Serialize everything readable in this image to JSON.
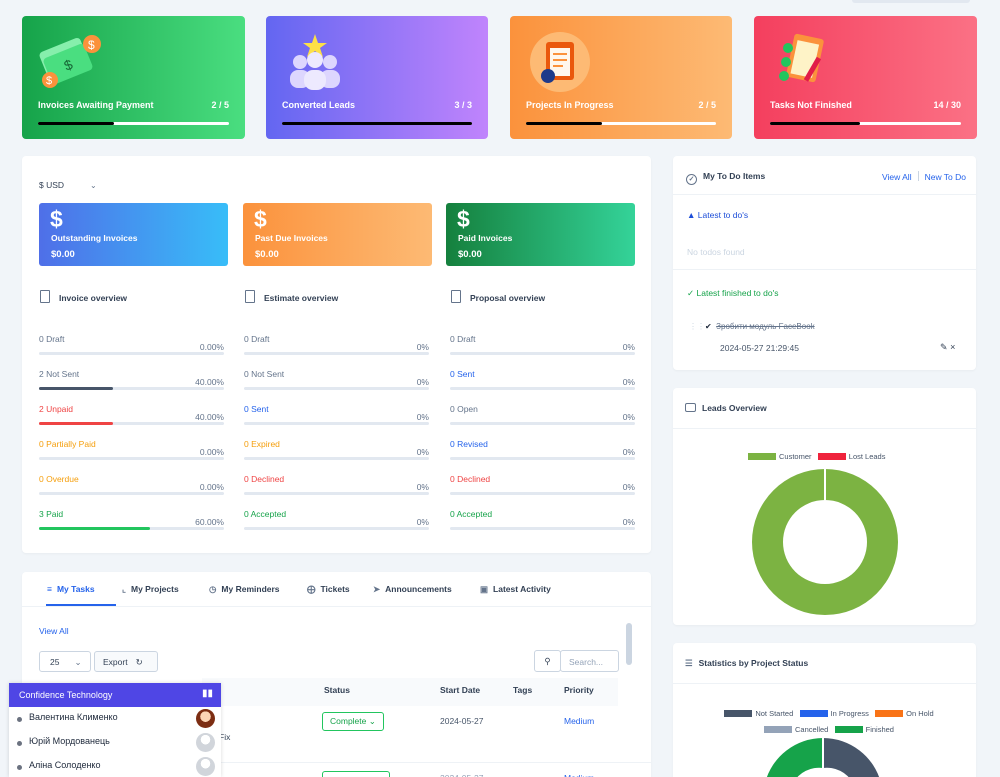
{
  "stats": [
    {
      "label": "Invoices Awaiting Payment",
      "count": "2 / 5",
      "progress": 0.4,
      "color_from": "#16a34a",
      "color_to": "#4ade80"
    },
    {
      "label": "Converted Leads",
      "count": "3 / 3",
      "progress": 1.0,
      "color_from": "#6366f1",
      "color_to": "#c084fc"
    },
    {
      "label": "Projects In Progress",
      "count": "2 / 5",
      "progress": 0.4,
      "color_from": "#fb923c",
      "color_to": "#fdba74"
    },
    {
      "label": "Tasks Not Finished",
      "count": "14 / 30",
      "progress": 0.47,
      "color_from": "#f43f5e",
      "color_to": "#fb7185"
    }
  ],
  "finance": {
    "currency": "$ USD",
    "cards": [
      {
        "symbol": "$",
        "label": "Outstanding Invoices",
        "value": "$0.00"
      },
      {
        "symbol": "$",
        "label": "Past Due Invoices",
        "value": "$0.00"
      },
      {
        "symbol": "$",
        "label": "Paid Invoices",
        "value": "$0.00"
      }
    ],
    "invoice_overview": {
      "title": "Invoice overview",
      "rows": [
        {
          "label": "0 Draft",
          "percent": "0.00%",
          "value": 0,
          "color": "#64748b",
          "bar": "#475569"
        },
        {
          "label": "2 Not Sent",
          "percent": "40.00%",
          "value": 40,
          "color": "#64748b",
          "bar": "#475569"
        },
        {
          "label": "2 Unpaid",
          "percent": "40.00%",
          "value": 40,
          "color": "#ef4444",
          "bar": "#ef4444"
        },
        {
          "label": "0 Partially Paid",
          "percent": "0.00%",
          "value": 0,
          "color": "#f59e0b",
          "bar": "#f59e0b"
        },
        {
          "label": "0 Overdue",
          "percent": "0.00%",
          "value": 0,
          "color": "#f59e0b",
          "bar": "#f59e0b"
        },
        {
          "label": "3 Paid",
          "percent": "60.00%",
          "value": 60,
          "color": "#16a34a",
          "bar": "#22c55e"
        }
      ]
    },
    "estimate_overview": {
      "title": "Estimate overview",
      "rows": [
        {
          "label": "0 Draft",
          "percent": "0%",
          "value": 0,
          "color": "#64748b",
          "bar": "#475569"
        },
        {
          "label": "0 Not Sent",
          "percent": "0%",
          "value": 0,
          "color": "#64748b",
          "bar": "#475569"
        },
        {
          "label": "0 Sent",
          "percent": "0%",
          "value": 0,
          "color": "#2563eb",
          "bar": "#2563eb"
        },
        {
          "label": "0 Expired",
          "percent": "0%",
          "value": 0,
          "color": "#f59e0b",
          "bar": "#f59e0b"
        },
        {
          "label": "0 Declined",
          "percent": "0%",
          "value": 0,
          "color": "#ef4444",
          "bar": "#ef4444"
        },
        {
          "label": "0 Accepted",
          "percent": "0%",
          "value": 0,
          "color": "#16a34a",
          "bar": "#22c55e"
        }
      ]
    },
    "proposal_overview": {
      "title": "Proposal overview",
      "rows": [
        {
          "label": "0 Draft",
          "percent": "0%",
          "value": 0,
          "color": "#64748b",
          "bar": "#475569"
        },
        {
          "label": "0 Sent",
          "percent": "0%",
          "value": 0,
          "color": "#2563eb",
          "bar": "#2563eb"
        },
        {
          "label": "0 Open",
          "percent": "0%",
          "value": 0,
          "color": "#64748b",
          "bar": "#475569"
        },
        {
          "label": "0 Revised",
          "percent": "0%",
          "value": 0,
          "color": "#2563eb",
          "bar": "#2563eb"
        },
        {
          "label": "0 Declined",
          "percent": "0%",
          "value": 0,
          "color": "#ef4444",
          "bar": "#ef4444"
        },
        {
          "label": "0 Accepted",
          "percent": "0%",
          "value": 0,
          "color": "#16a34a",
          "bar": "#22c55e"
        }
      ]
    }
  },
  "todo": {
    "title": "My To Do Items",
    "view_all": "View All",
    "new_todo": "New To Do",
    "latest_title": "Latest to do's",
    "empty": "No todos found",
    "finished_title": "Latest finished to do's",
    "finished_item": "Зробити модуль FaceBook",
    "finished_date": "2024-05-27 21:29:45"
  },
  "leads": {
    "title": "Leads Overview",
    "legend": [
      {
        "name": "Customer",
        "color": "#7cb342"
      },
      {
        "name": "Lost Leads",
        "color": "#ef233c"
      }
    ]
  },
  "chart_data": {
    "type": "pie",
    "title": "",
    "categories": [
      "Customer",
      "Lost Leads"
    ],
    "values": [
      100,
      0
    ],
    "colors": [
      "#7cb342",
      "#ef233c"
    ]
  },
  "project_stats": {
    "title": "Statistics by Project Status",
    "legend": [
      {
        "name": "Not Started",
        "color": "#475569"
      },
      {
        "name": "In Progress",
        "color": "#2563eb"
      },
      {
        "name": "On Hold",
        "color": "#f97316"
      },
      {
        "name": "Cancelled",
        "color": "#94a3b8"
      },
      {
        "name": "Finished",
        "color": "#16a34a"
      }
    ]
  },
  "tabs": {
    "items": [
      "My Tasks",
      "My Projects",
      "My Reminders",
      "Tickets",
      "Announcements",
      "Latest Activity"
    ],
    "view_all": "View All",
    "page_size": "25",
    "export": "Export",
    "search_placeholder": "Search...",
    "columns": [
      "Status",
      "Start Date",
      "Tags",
      "Priority"
    ],
    "row": {
      "status": "Complete",
      "start_date": "2024-05-27",
      "priority": "Medium",
      "name_fragment": "Fix"
    }
  },
  "chat": {
    "title": "Confidence Technology",
    "users": [
      "Валентина Клименко",
      "Юрій Мордованець",
      "Аліна Солоденко"
    ]
  }
}
